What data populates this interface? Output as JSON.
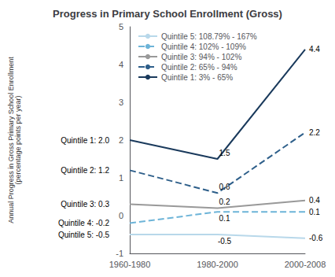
{
  "chart_data": {
    "type": "line",
    "title": "Progress in Primary School Enrollment (Gross)",
    "ylabel": "Annual Progress in Gross Primary School Enrollment\n(percentage points per year)",
    "categories": [
      "1960-1980",
      "1980-2000",
      "2000-2008"
    ],
    "series": [
      {
        "name": "Quintile 5: 108.79% - 167%",
        "color": "#b8d8ea",
        "line_style": "solid",
        "values": [
          -0.5,
          -0.5,
          -0.6
        ],
        "value_labels": [
          "Quintile 5: -0.5",
          "-0.5",
          "-0.6"
        ]
      },
      {
        "name": "Quintile 4: 102% - 109%",
        "color": "#6db4d8",
        "line_style": "dashed",
        "values": [
          -0.2,
          0.1,
          0.1
        ],
        "value_labels": [
          "Quintile 4: -0.2",
          "0.1",
          "0.1"
        ]
      },
      {
        "name": "Quintile 3: 94% - 102%",
        "color": "#999999",
        "line_style": "solid",
        "values": [
          0.3,
          0.2,
          0.4
        ],
        "value_labels": [
          "Quintile 3: 0.3",
          "0.2",
          "0.4"
        ]
      },
      {
        "name": "Quintile 2: 65% - 94%",
        "color": "#2e5f8a",
        "line_style": "dashed",
        "values": [
          1.2,
          0.6,
          2.2
        ],
        "value_labels": [
          "Quintile 2: 1.2",
          "0.6",
          "2.2"
        ]
      },
      {
        "name": "Quintile 1: 3% - 65%",
        "color": "#1a3a5c",
        "line_style": "solid",
        "values": [
          2.0,
          1.5,
          4.4
        ],
        "value_labels": [
          "Quintile 1: 2.0",
          "1.5",
          "4.4"
        ]
      }
    ],
    "ylim": [
      -1,
      5
    ],
    "yticks": [
      -1,
      0,
      1,
      2,
      3,
      4,
      5
    ],
    "grid": false,
    "legend": "upper left",
    "data_labels": true
  }
}
